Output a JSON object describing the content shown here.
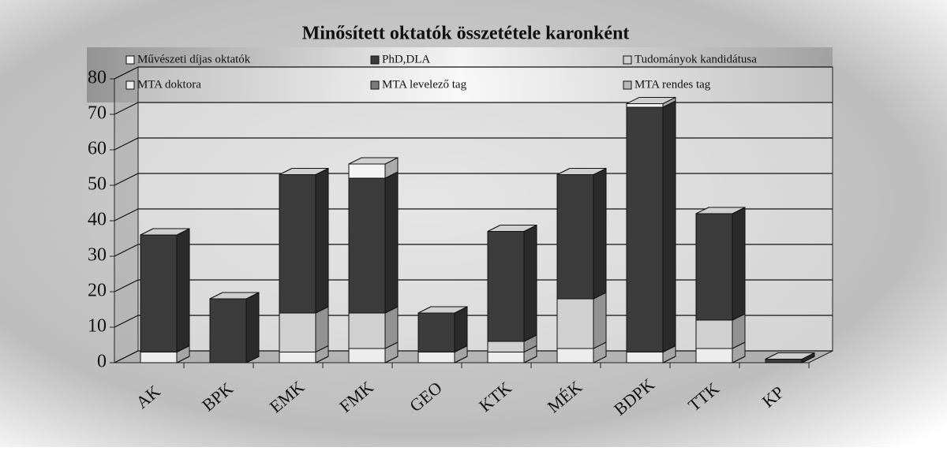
{
  "chart_data": {
    "type": "bar3d_stacked",
    "title": "Minősített oktatók összetétele karonként",
    "categories": [
      "AK",
      "BPK",
      "EMK",
      "FMK",
      "GEO",
      "KTK",
      "MÉK",
      "BDPK",
      "TTK",
      "KP"
    ],
    "series": [
      {
        "name": "Művészeti díjas oktatók",
        "color": "#f4f4f4",
        "values": [
          0,
          0,
          0,
          4,
          0,
          0,
          0,
          1,
          0,
          0
        ]
      },
      {
        "name": "PhD,DLA",
        "color": "#3c3c3c",
        "values": [
          33,
          18,
          39,
          38,
          11,
          31,
          35,
          69,
          30,
          1
        ]
      },
      {
        "name": "Tudományok kandidátusa",
        "color": "#d0d0d0",
        "values": [
          0,
          0,
          11,
          10,
          0,
          3,
          14,
          0,
          8,
          0
        ]
      },
      {
        "name": "MTA doktora",
        "color": "#ececec",
        "values": [
          3,
          0,
          3,
          4,
          3,
          3,
          4,
          3,
          4,
          0
        ]
      },
      {
        "name": "MTA levelező tag",
        "color": "#7a7a7a",
        "values": [
          0,
          0,
          0,
          0,
          0,
          0,
          0,
          0,
          0,
          0
        ]
      },
      {
        "name": "MTA rendes tag",
        "color": "#b8b8b8",
        "values": [
          0,
          0,
          0,
          0,
          0,
          0,
          0,
          0,
          0,
          0
        ]
      }
    ],
    "ylim": [
      0,
      80
    ],
    "yticks": [
      0,
      10,
      20,
      30,
      40,
      50,
      60,
      70,
      80
    ],
    "grid": true
  }
}
